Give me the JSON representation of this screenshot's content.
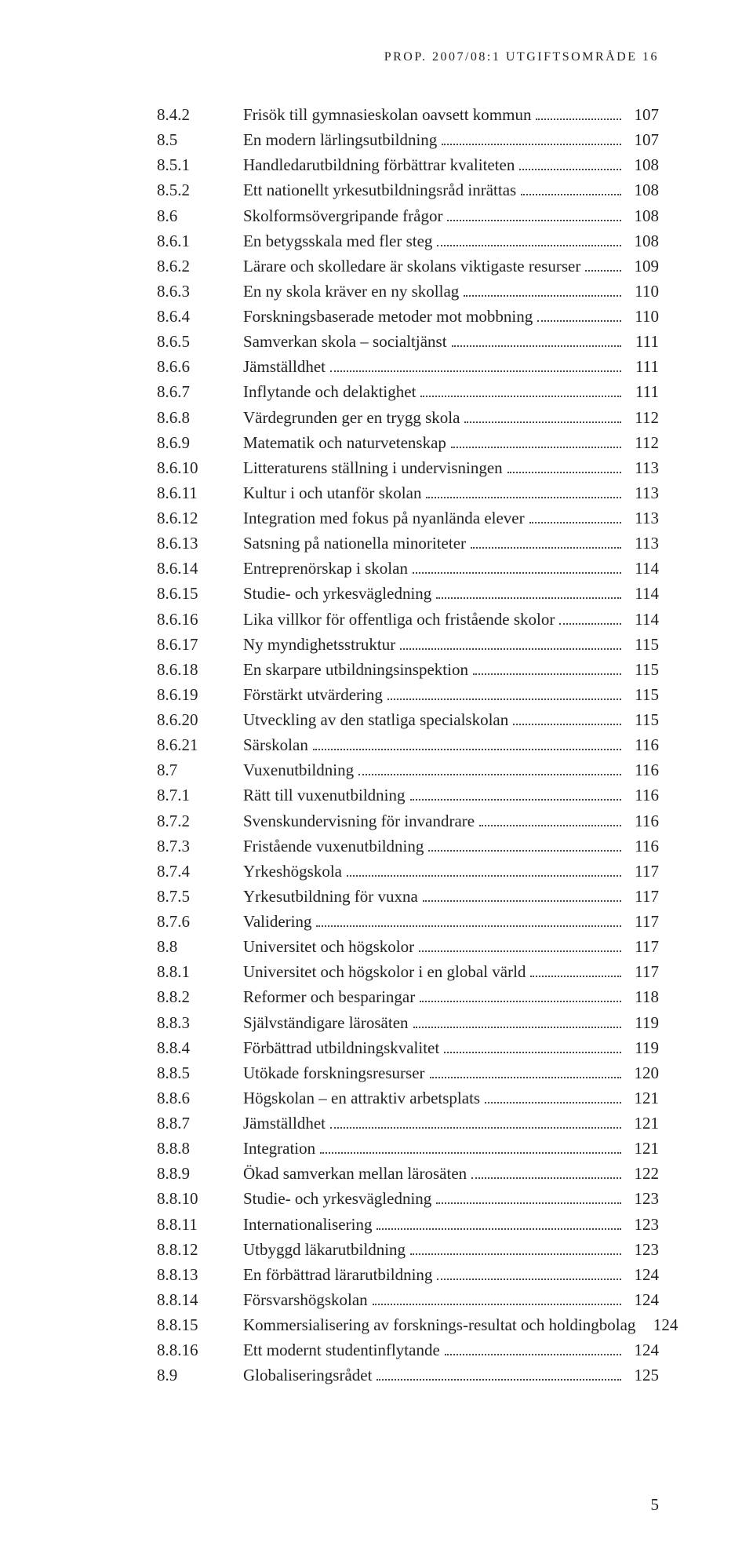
{
  "runningHead": "PROP. 2007/08:1 UTGIFTSOMRÅDE 16",
  "pageNumber": "5",
  "toc": [
    {
      "num": "8.4.2",
      "title": "Frisök till gymnasieskolan oavsett kommun",
      "page": "107"
    },
    {
      "num": "8.5",
      "title": "En modern lärlingsutbildning",
      "page": "107"
    },
    {
      "num": "8.5.1",
      "title": "Handledarutbildning förbättrar kvaliteten",
      "page": "108"
    },
    {
      "num": "8.5.2",
      "title": "Ett nationellt yrkesutbildningsråd inrättas",
      "page": "108"
    },
    {
      "num": "8.6",
      "title": "Skolformsövergripande frågor",
      "page": "108"
    },
    {
      "num": "8.6.1",
      "title": "En betygsskala med fler steg",
      "page": "108"
    },
    {
      "num": "8.6.2",
      "title": "Lärare och skolledare är skolans viktigaste resurser",
      "page": "109"
    },
    {
      "num": "8.6.3",
      "title": "En ny skola kräver en ny skollag",
      "page": "110"
    },
    {
      "num": "8.6.4",
      "title": "Forskningsbaserade metoder mot mobbning",
      "page": "110"
    },
    {
      "num": "8.6.5",
      "title": "Samverkan skola – socialtjänst",
      "page": "111"
    },
    {
      "num": "8.6.6",
      "title": "Jämställdhet",
      "page": "111"
    },
    {
      "num": "8.6.7",
      "title": "Inflytande och delaktighet",
      "page": "111"
    },
    {
      "num": "8.6.8",
      "title": "Värdegrunden ger en trygg skola",
      "page": "112"
    },
    {
      "num": "8.6.9",
      "title": "Matematik och naturvetenskap",
      "page": "112"
    },
    {
      "num": "8.6.10",
      "title": "Litteraturens ställning i undervisningen",
      "page": "113"
    },
    {
      "num": "8.6.11",
      "title": "Kultur i och utanför skolan",
      "page": "113"
    },
    {
      "num": "8.6.12",
      "title": "Integration med fokus på nyanlända elever",
      "page": "113"
    },
    {
      "num": "8.6.13",
      "title": "Satsning på nationella minoriteter",
      "page": "113"
    },
    {
      "num": "8.6.14",
      "title": "Entreprenörskap i skolan",
      "page": "114"
    },
    {
      "num": "8.6.15",
      "title": "Studie- och yrkesvägledning",
      "page": "114"
    },
    {
      "num": "8.6.16",
      "title": "Lika villkor för offentliga och fristående skolor",
      "page": "114"
    },
    {
      "num": "8.6.17",
      "title": "Ny myndighetsstruktur",
      "page": "115"
    },
    {
      "num": "8.6.18",
      "title": "En skarpare utbildningsinspektion",
      "page": "115"
    },
    {
      "num": "8.6.19",
      "title": "Förstärkt utvärdering",
      "page": "115"
    },
    {
      "num": "8.6.20",
      "title": "Utveckling av den statliga specialskolan",
      "page": "115"
    },
    {
      "num": "8.6.21",
      "title": "Särskolan",
      "page": "116"
    },
    {
      "num": "8.7",
      "title": "Vuxenutbildning",
      "page": "116"
    },
    {
      "num": "8.7.1",
      "title": "Rätt till vuxenutbildning",
      "page": "116"
    },
    {
      "num": "8.7.2",
      "title": "Svenskundervisning för invandrare",
      "page": "116"
    },
    {
      "num": "8.7.3",
      "title": "Fristående vuxenutbildning",
      "page": "116"
    },
    {
      "num": "8.7.4",
      "title": "Yrkeshögskola",
      "page": "117"
    },
    {
      "num": "8.7.5",
      "title": "Yrkesutbildning för vuxna",
      "page": "117"
    },
    {
      "num": "8.7.6",
      "title": "Validering",
      "page": "117"
    },
    {
      "num": "8.8",
      "title": "Universitet och högskolor",
      "page": "117"
    },
    {
      "num": "8.8.1",
      "title": "Universitet och högskolor i en global värld",
      "page": "117"
    },
    {
      "num": "8.8.2",
      "title": "Reformer och besparingar",
      "page": "118"
    },
    {
      "num": "8.8.3",
      "title": "Självständigare lärosäten",
      "page": "119"
    },
    {
      "num": "8.8.4",
      "title": "Förbättrad utbildningskvalitet",
      "page": "119"
    },
    {
      "num": "8.8.5",
      "title": "Utökade forskningsresurser",
      "page": "120"
    },
    {
      "num": "8.8.6",
      "title": "Högskolan – en attraktiv arbetsplats",
      "page": "121"
    },
    {
      "num": "8.8.7",
      "title": "Jämställdhet",
      "page": "121"
    },
    {
      "num": "8.8.8",
      "title": "Integration",
      "page": "121"
    },
    {
      "num": "8.8.9",
      "title": "Ökad samverkan mellan lärosäten",
      "page": "122"
    },
    {
      "num": "8.8.10",
      "title": "Studie- och yrkesvägledning",
      "page": "123"
    },
    {
      "num": "8.8.11",
      "title": "Internationalisering",
      "page": "123"
    },
    {
      "num": "8.8.12",
      "title": "Utbyggd läkarutbildning",
      "page": "123"
    },
    {
      "num": "8.8.13",
      "title": "En förbättrad lärarutbildning",
      "page": "124"
    },
    {
      "num": "8.8.14",
      "title": "Försvarshögskolan",
      "page": "124"
    },
    {
      "num": "8.8.15",
      "title": "Kommersialisering av forsknings-resultat och holdingbolag",
      "page": "124"
    },
    {
      "num": "8.8.16",
      "title": "Ett modernt studentinflytande",
      "page": "124"
    },
    {
      "num": "8.9",
      "title": "Globaliseringsrådet",
      "page": "125"
    }
  ]
}
